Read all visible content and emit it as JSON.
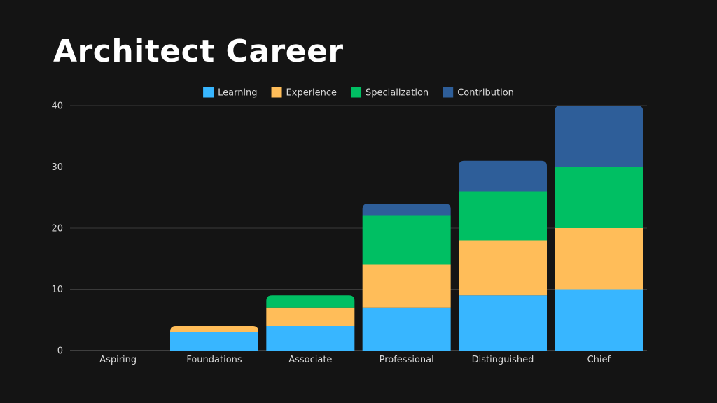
{
  "title": "Architect Career",
  "colors": {
    "background": "#141414",
    "grid": "#3a3a3a",
    "text": "#d9d9d9"
  },
  "chart_data": {
    "type": "bar",
    "stacked": true,
    "categories": [
      "Aspiring",
      "Foundations",
      "Associate",
      "Professional",
      "Distinguished",
      "Chief"
    ],
    "series": [
      {
        "name": "Learning",
        "color": "#38b6ff",
        "values": [
          0,
          3,
          4,
          7,
          9,
          10
        ]
      },
      {
        "name": "Experience",
        "color": "#ffbd59",
        "values": [
          0,
          1,
          3,
          7,
          9,
          10
        ]
      },
      {
        "name": "Specialization",
        "color": "#00bf63",
        "values": [
          0,
          0,
          2,
          8,
          8,
          10
        ]
      },
      {
        "name": "Contribution",
        "color": "#2e5e99",
        "values": [
          0,
          0,
          0,
          2,
          5,
          10
        ]
      }
    ],
    "ylim": [
      0,
      40
    ],
    "yticks": [
      0,
      10,
      20,
      30,
      40
    ],
    "grid": true,
    "legend": "top-center"
  }
}
